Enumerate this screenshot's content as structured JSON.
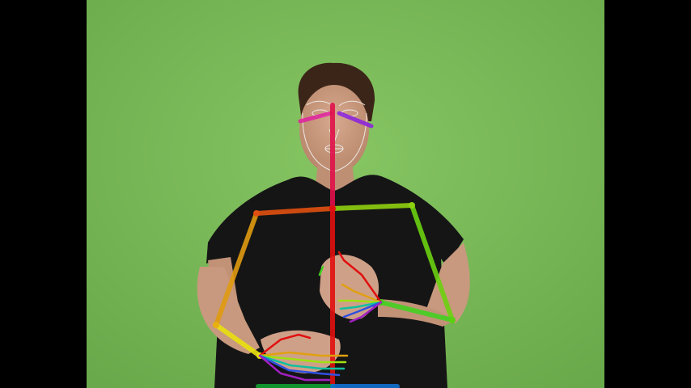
{
  "scene": {
    "description_free": true,
    "backdrop_color": "#78b956",
    "letterbox_color": "#000000",
    "shirt_color": "#141414",
    "skin_color": "#c99a80",
    "hair_color": "#3b2518"
  },
  "overlay": {
    "type": "pose-skeleton",
    "face_mesh_color": "#f2f2f2",
    "keypoint_colors": {
      "spine": "#e01010",
      "neck": "#e0104a",
      "right_shoulder": "#e05010",
      "left_shoulder": "#8ecf10",
      "right_upper_arm": "#e09a10",
      "right_forearm": "#e8e010",
      "left_upper_arm": "#6ad010",
      "left_forearm": "#42d020",
      "right_eye_brow": "#e020a0",
      "left_eye_brow": "#8a20e0",
      "hips_left": "#10a030",
      "hips_right": "#1070d0"
    },
    "hand_finger_colors": [
      "#e01010",
      "#e0a010",
      "#a0e010",
      "#10c0a0",
      "#3050e0",
      "#a020c0"
    ]
  }
}
